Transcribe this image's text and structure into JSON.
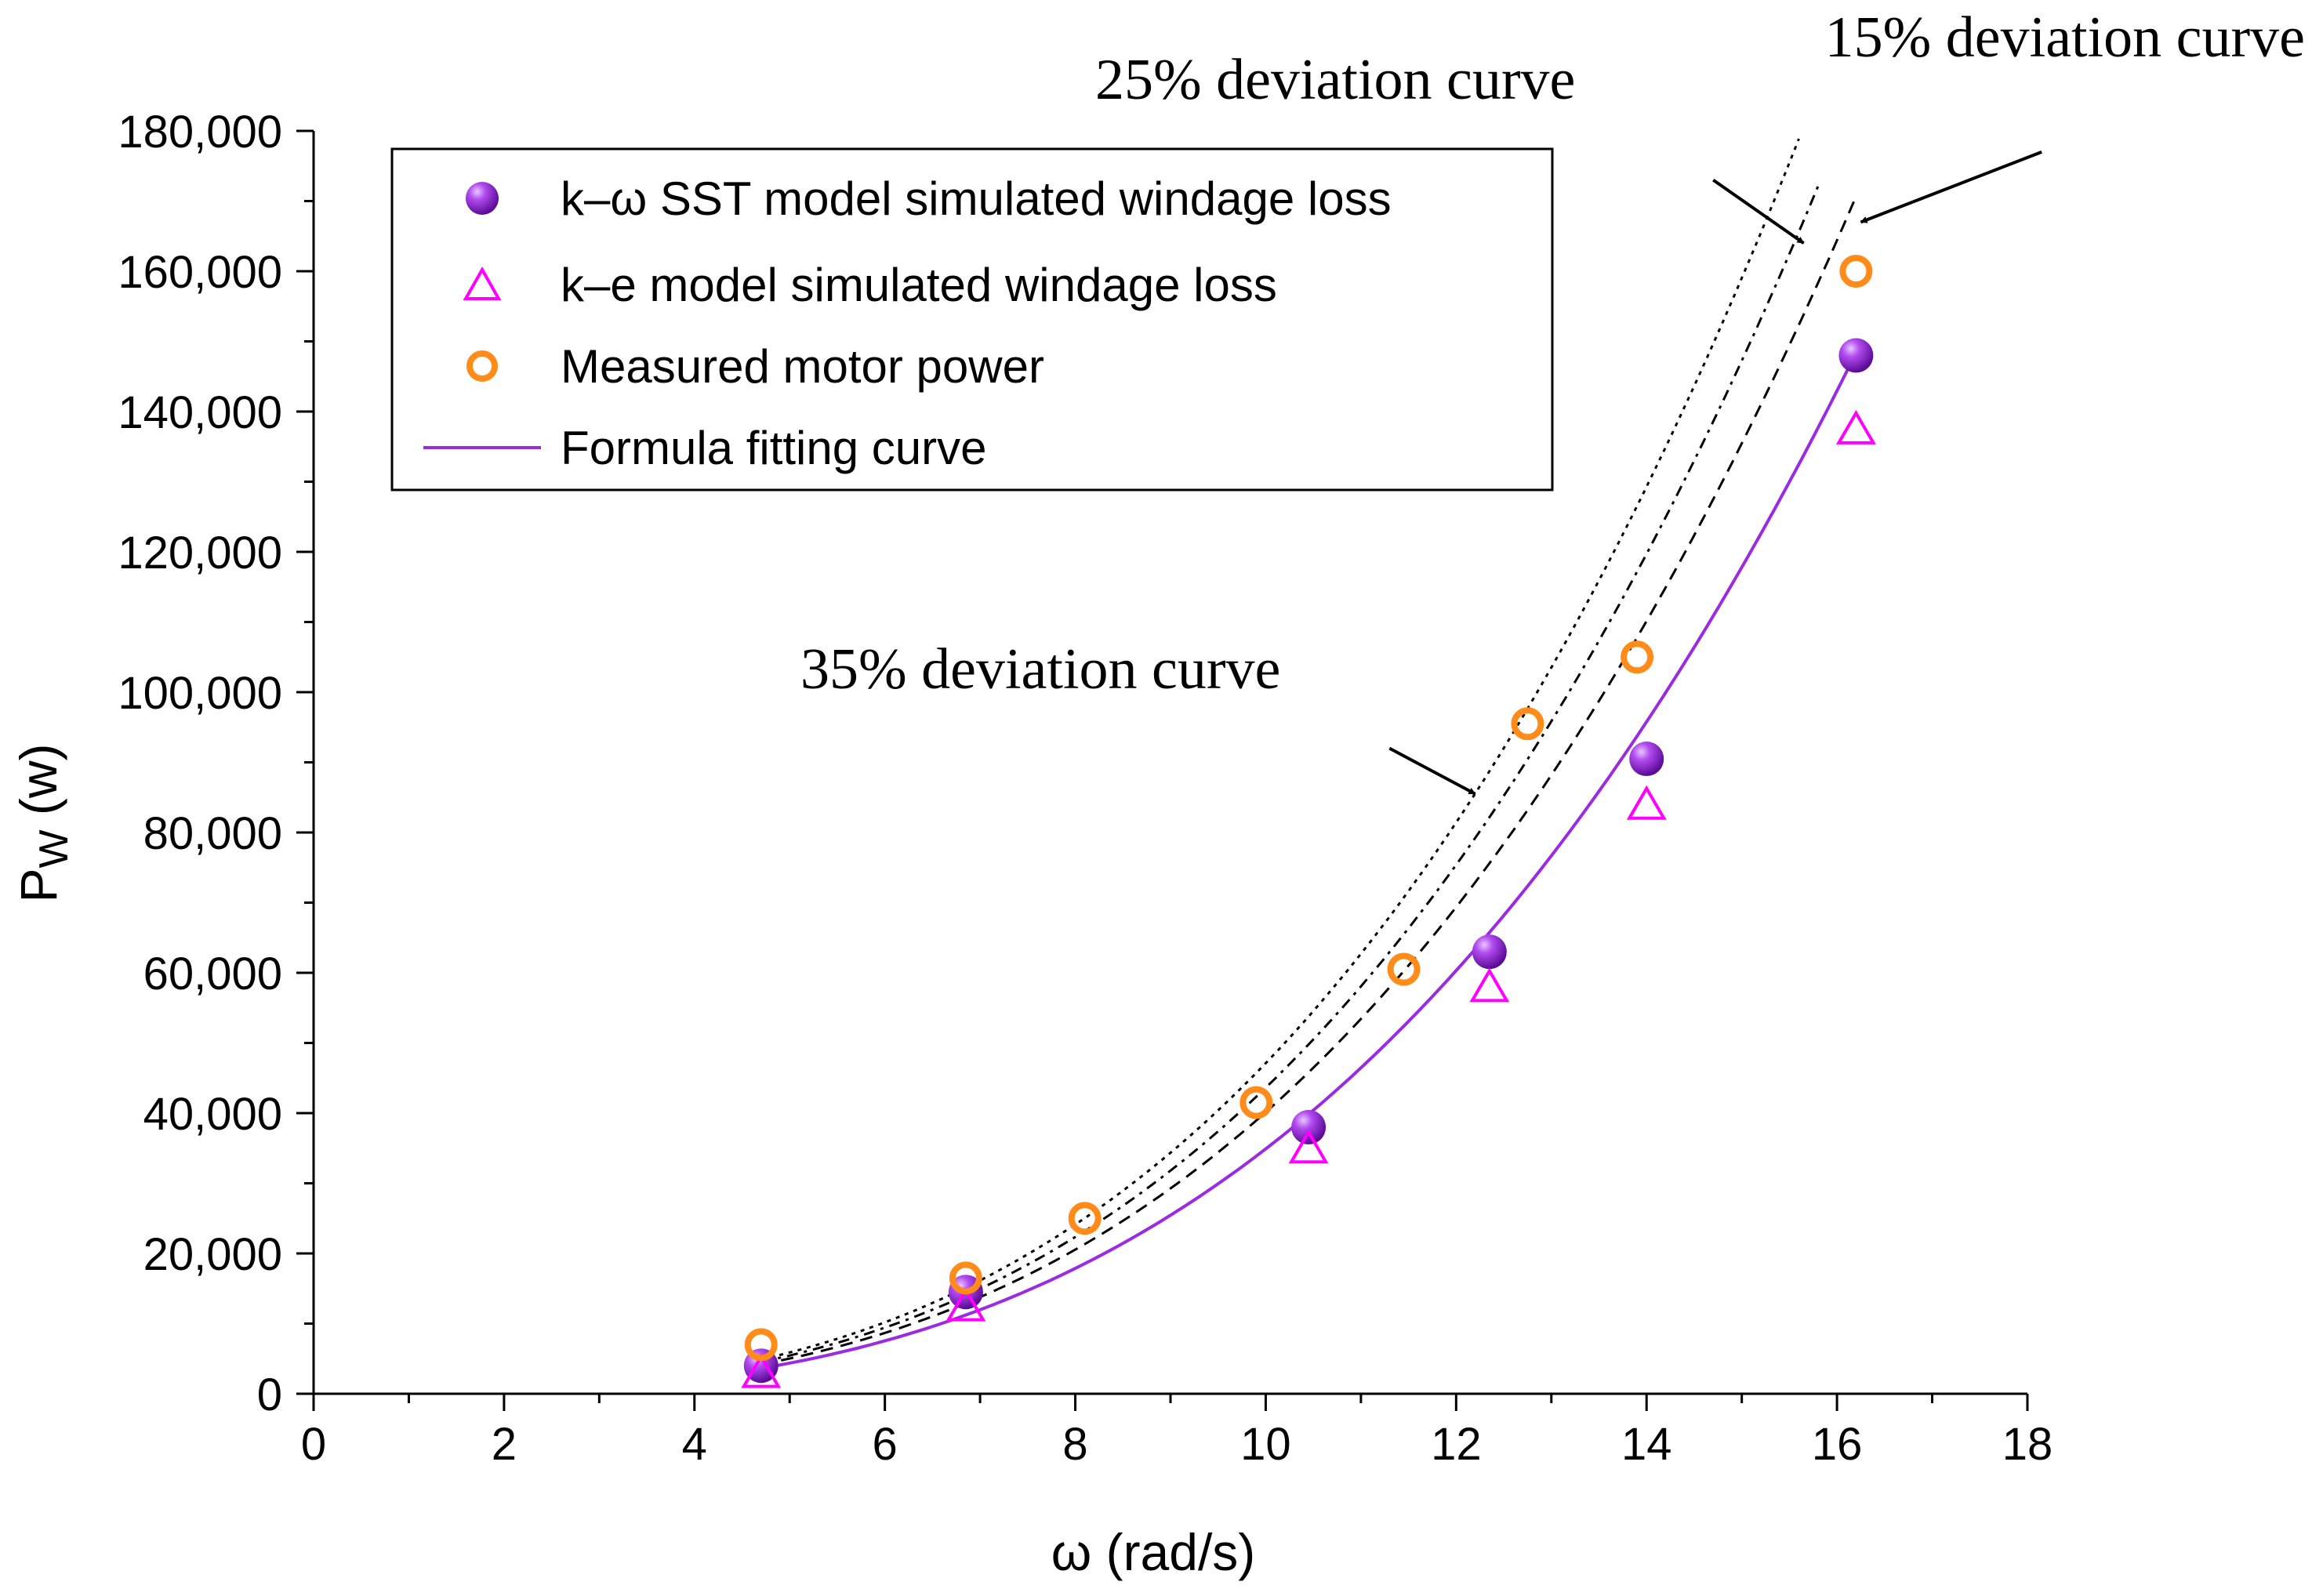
{
  "chart_data": {
    "type": "scatter",
    "xlabel": "ω (rad/s)",
    "ylabel_main": "P",
    "ylabel_sub": "W",
    "ylabel_unit": " (w)",
    "xlim": [
      0,
      18
    ],
    "ylim": [
      0,
      180000
    ],
    "x_ticks": [
      0,
      2,
      4,
      6,
      8,
      10,
      12,
      14,
      16,
      18
    ],
    "x_tick_labels": [
      "0",
      "2",
      "4",
      "6",
      "8",
      "10",
      "12",
      "14",
      "16",
      "18"
    ],
    "y_ticks": [
      0,
      20000,
      40000,
      60000,
      80000,
      100000,
      120000,
      140000,
      160000,
      180000
    ],
    "y_tick_labels": [
      "0",
      "20,000",
      "40,000",
      "60,000",
      "80,000",
      "100,000",
      "120,000",
      "140,000",
      "160,000",
      "180,000"
    ],
    "grid": false,
    "legend_position": "top-left",
    "series": [
      {
        "name": "k–ω SST model simulated windage loss",
        "marker": "sphere",
        "color": "#9b2be0",
        "points": [
          [
            4.7,
            4000
          ],
          [
            6.85,
            14500
          ],
          [
            10.45,
            38000
          ],
          [
            12.35,
            63000
          ],
          [
            14.0,
            90500
          ],
          [
            16.2,
            148000
          ]
        ]
      },
      {
        "name": "k–e model  simulated windage loss",
        "marker": "triangle",
        "color": "#ff00ff",
        "points": [
          [
            4.7,
            3500
          ],
          [
            6.85,
            13000
          ],
          [
            10.45,
            35500
          ],
          [
            12.35,
            58500
          ],
          [
            14.0,
            84500
          ],
          [
            16.2,
            138000
          ]
        ]
      },
      {
        "name": "Measured motor power",
        "marker": "circle",
        "color": "#ff8c1a",
        "points": [
          [
            4.7,
            7000
          ],
          [
            6.85,
            16500
          ],
          [
            8.1,
            25000
          ],
          [
            9.9,
            41500
          ],
          [
            11.45,
            60500
          ],
          [
            12.75,
            95500
          ],
          [
            13.9,
            105000
          ],
          [
            16.2,
            160000
          ]
        ]
      },
      {
        "name": "Formula fitting curve",
        "type": "line",
        "color": "#9b2be0",
        "coefficient": 34.9,
        "exponent": 3,
        "x_range": [
          4.7,
          16.2
        ]
      }
    ],
    "deviation_curves": [
      {
        "label": "15% deviation curve",
        "factor": 1.15,
        "x_range": [
          4.7,
          16.2
        ],
        "dash": "medium"
      },
      {
        "label": "25% deviation curve",
        "factor": 1.25,
        "x_range": [
          4.7,
          15.8
        ],
        "dash": "dashdot"
      },
      {
        "label": "35% deviation curve",
        "factor": 1.35,
        "x_range": [
          4.7,
          15.6
        ],
        "dash": "dotted"
      }
    ],
    "annotations": [
      {
        "text": "15% deviation curve",
        "arrow_tail": [
          18.15,
          177000
        ],
        "arrow_head": [
          16.25,
          167000
        ]
      },
      {
        "text": "25% deviation curve",
        "arrow_tail": [
          14.7,
          173000
        ],
        "arrow_head": [
          15.65,
          164000
        ]
      },
      {
        "text": "35% deviation curve",
        "arrow_tail": [
          11.3,
          92000
        ],
        "arrow_head": [
          12.2,
          85500
        ]
      }
    ]
  }
}
